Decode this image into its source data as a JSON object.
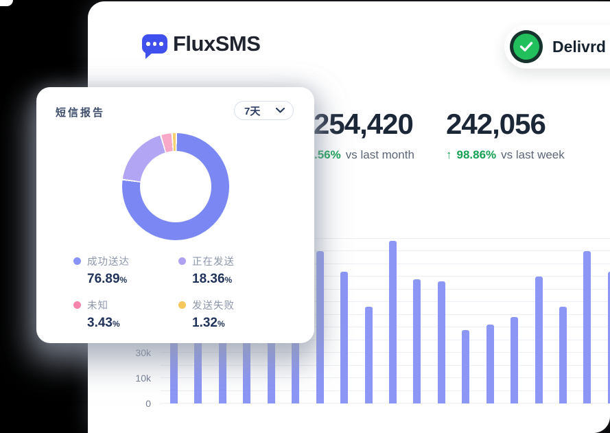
{
  "brand": {
    "name": "FluxSMS"
  },
  "delivered_badge": {
    "label": "Delivrd"
  },
  "stats": [
    {
      "value": "254,420",
      "delta_value": ".56%",
      "delta_label": "vs last month",
      "arrow": ""
    },
    {
      "value": "242,056",
      "delta_value": "98.86%",
      "delta_label": "vs last week",
      "arrow": "↑"
    }
  ],
  "report": {
    "title": "短信报告",
    "range_selector": {
      "value": "7天"
    }
  },
  "chart_data": [
    {
      "type": "pie",
      "donut": true,
      "title": "短信报告",
      "legend_position": "bottom",
      "segments": [
        {
          "label": "成功送达",
          "value": 76.89,
          "unit": "%",
          "color": "#7B87F3",
          "dot_color": "#8A93F7"
        },
        {
          "label": "正在发送",
          "value": 18.36,
          "unit": "%",
          "color": "#B2A5F4",
          "dot_color": "#AFA0F2"
        },
        {
          "label": "未知",
          "value": 3.43,
          "unit": "%",
          "color": "#F9A9C8",
          "dot_color": "#F884AC"
        },
        {
          "label": "发送失败",
          "value": 1.32,
          "unit": "%",
          "color": "#F6CF6E",
          "dot_color": "#F5C75D"
        }
      ]
    },
    {
      "type": "bar",
      "y_tick_labels": [
        "0",
        "10k",
        "30k"
      ],
      "y_tick_line_index": [
        0,
        2,
        4
      ],
      "gridlines": 14,
      "values_k": [
        55,
        48,
        60,
        50,
        53,
        58,
        60,
        52,
        38,
        64,
        49,
        48,
        29,
        31,
        34,
        50,
        38,
        60,
        52
      ],
      "bar_color": "#8C96F5",
      "grid_color": "#ECEFF3",
      "grid": true
    }
  ]
}
